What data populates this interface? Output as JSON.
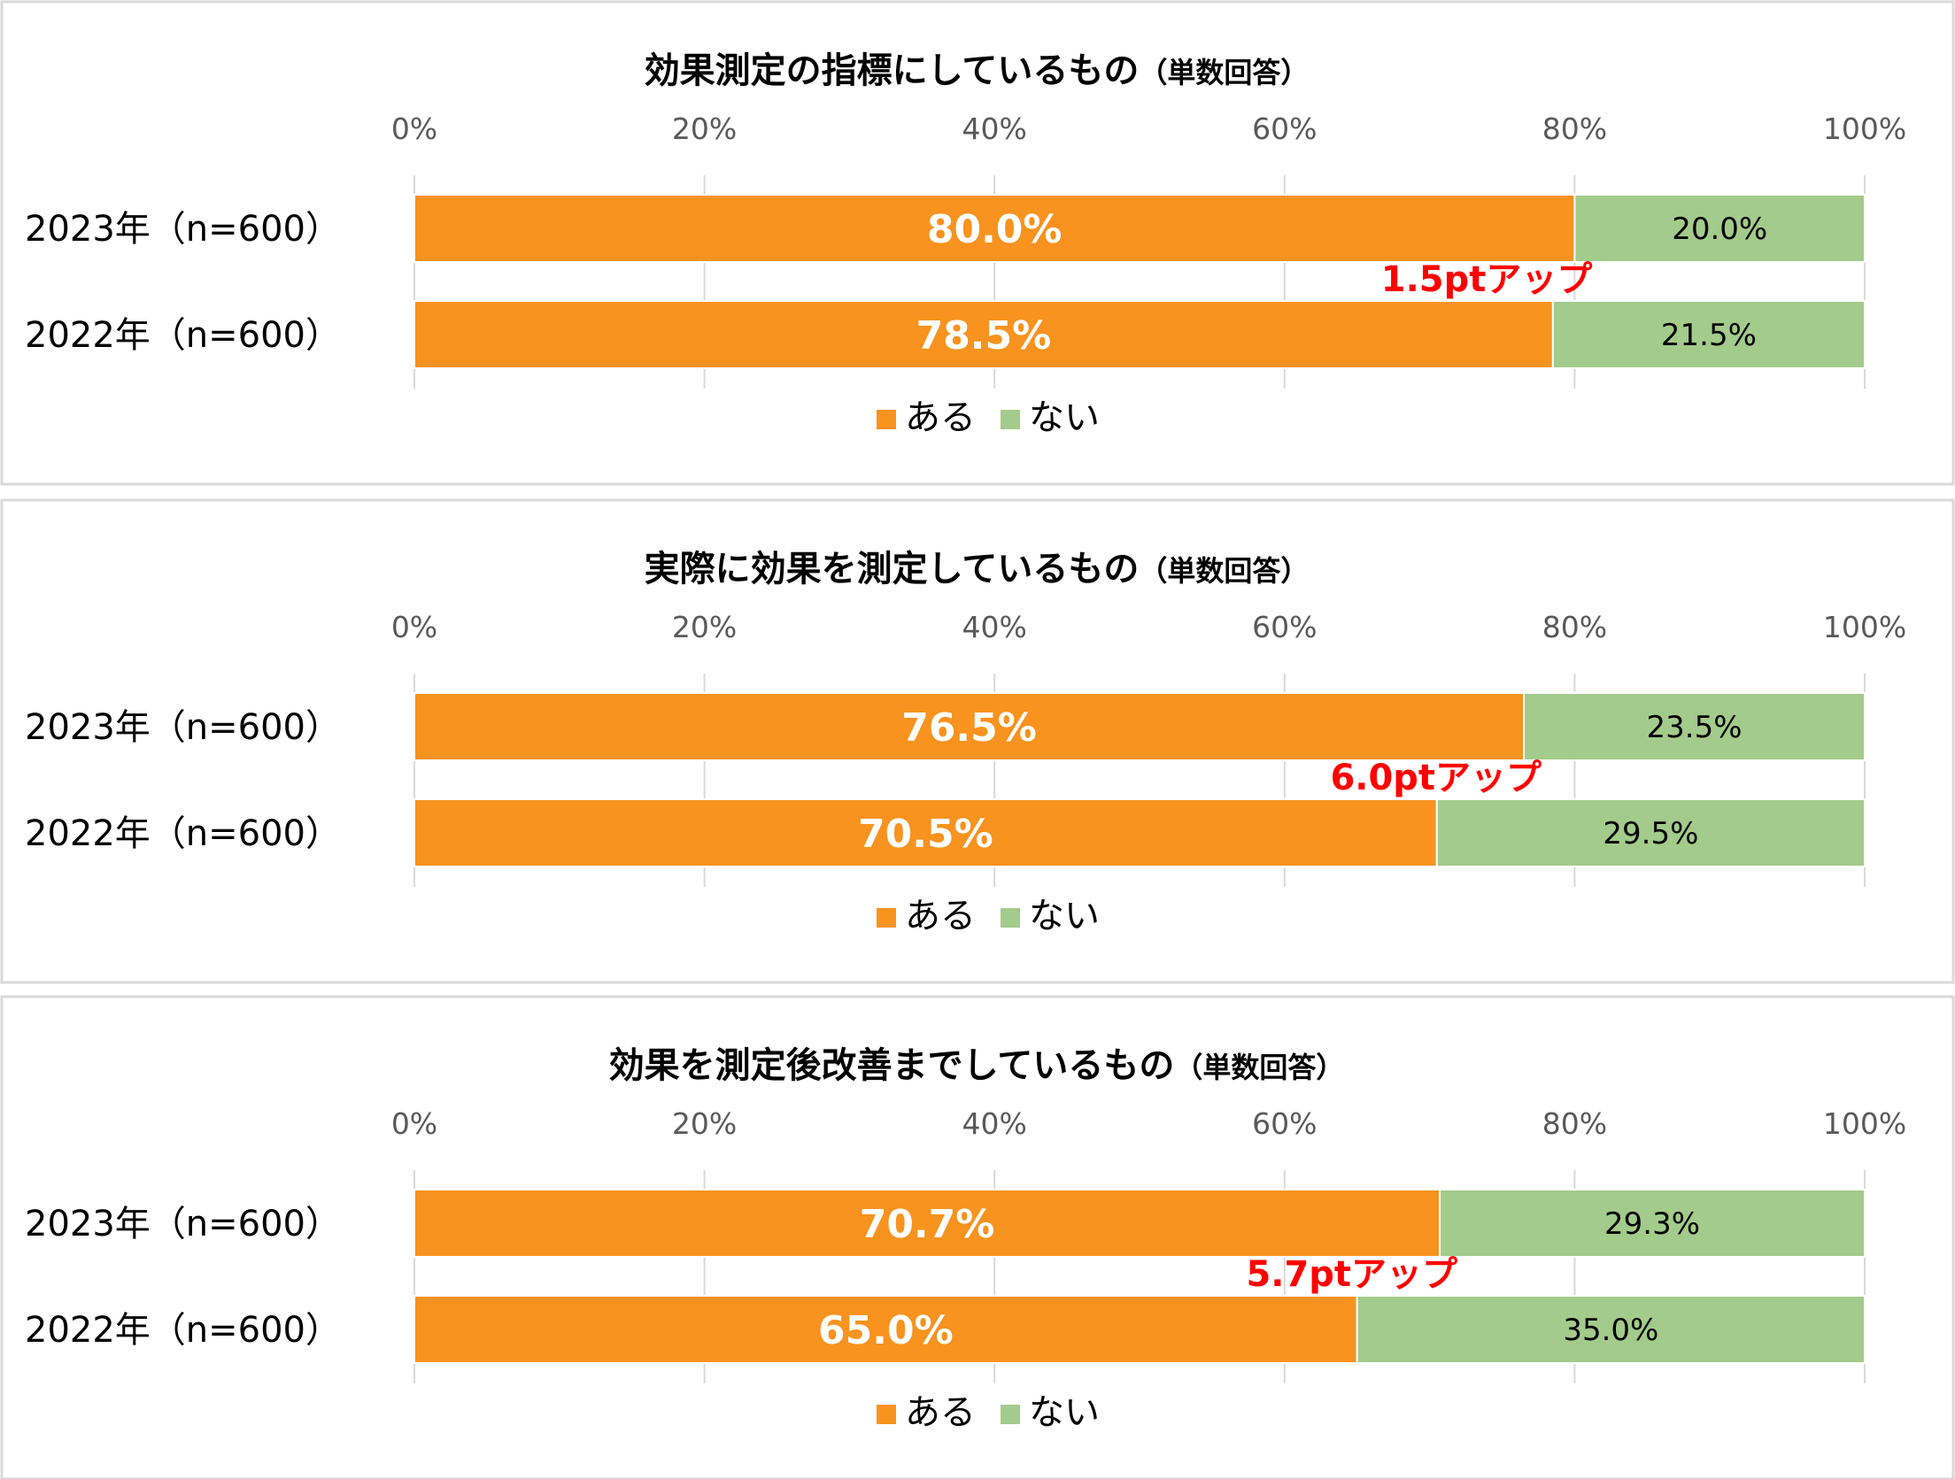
{
  "colors": {
    "yes": "#F7931E",
    "no": "#A3CB8B",
    "annotation": "#FF0000",
    "grid": "#D9D9D9",
    "panel_border": "#D9D9D9",
    "axis_text": "#595959",
    "text": "#000000"
  },
  "chart_data": [
    {
      "type": "bar",
      "orientation": "horizontal",
      "stacked": true,
      "percent": true,
      "title": "効果測定の指標にしているもの（単数回答）",
      "title_main": "効果測定の指標にしているもの",
      "title_note": "（単数回答）",
      "categories": [
        "2023年（n=600）",
        "2022年（n=600）"
      ],
      "series": [
        {
          "name": "ある",
          "values": [
            80.0,
            78.5
          ],
          "labels": [
            "80.0%",
            "78.5%"
          ]
        },
        {
          "name": "ない",
          "values": [
            20.0,
            21.5
          ],
          "labels": [
            "20.0%",
            "21.5%"
          ]
        }
      ],
      "xlim": [
        0,
        100
      ],
      "x_ticks": [
        "0%",
        "20%",
        "40%",
        "60%",
        "80%",
        "100%"
      ],
      "grid": true,
      "legend": [
        "ある",
        "ない"
      ],
      "legend_position": "bottom",
      "annotation": "1.5ptアップ"
    },
    {
      "type": "bar",
      "orientation": "horizontal",
      "stacked": true,
      "percent": true,
      "title": "実際に効果を測定しているもの（単数回答）",
      "title_main": "実際に効果を測定しているもの",
      "title_note": "（単数回答）",
      "categories": [
        "2023年（n=600）",
        "2022年（n=600）"
      ],
      "series": [
        {
          "name": "ある",
          "values": [
            76.5,
            70.5
          ],
          "labels": [
            "76.5%",
            "70.5%"
          ]
        },
        {
          "name": "ない",
          "values": [
            23.5,
            29.5
          ],
          "labels": [
            "23.5%",
            "29.5%"
          ]
        }
      ],
      "xlim": [
        0,
        100
      ],
      "x_ticks": [
        "0%",
        "20%",
        "40%",
        "60%",
        "80%",
        "100%"
      ],
      "grid": true,
      "legend": [
        "ある",
        "ない"
      ],
      "legend_position": "bottom",
      "annotation": "6.0ptアップ"
    },
    {
      "type": "bar",
      "orientation": "horizontal",
      "stacked": true,
      "percent": true,
      "title": "効果を測定後改善までしているもの（単数回答）",
      "title_main": "効果を測定後改善までしているもの",
      "title_note": "（単数回答）",
      "categories": [
        "2023年（n=600）",
        "2022年（n=600）"
      ],
      "series": [
        {
          "name": "ある",
          "values": [
            70.7,
            65.0
          ],
          "labels": [
            "70.7%",
            "65.0%"
          ]
        },
        {
          "name": "ない",
          "values": [
            29.3,
            35.0
          ],
          "labels": [
            "29.3%",
            "35.0%"
          ]
        }
      ],
      "xlim": [
        0,
        100
      ],
      "x_ticks": [
        "0%",
        "20%",
        "40%",
        "60%",
        "80%",
        "100%"
      ],
      "grid": true,
      "legend": [
        "ある",
        "ない"
      ],
      "legend_position": "bottom",
      "annotation": "5.7ptアップ"
    }
  ]
}
